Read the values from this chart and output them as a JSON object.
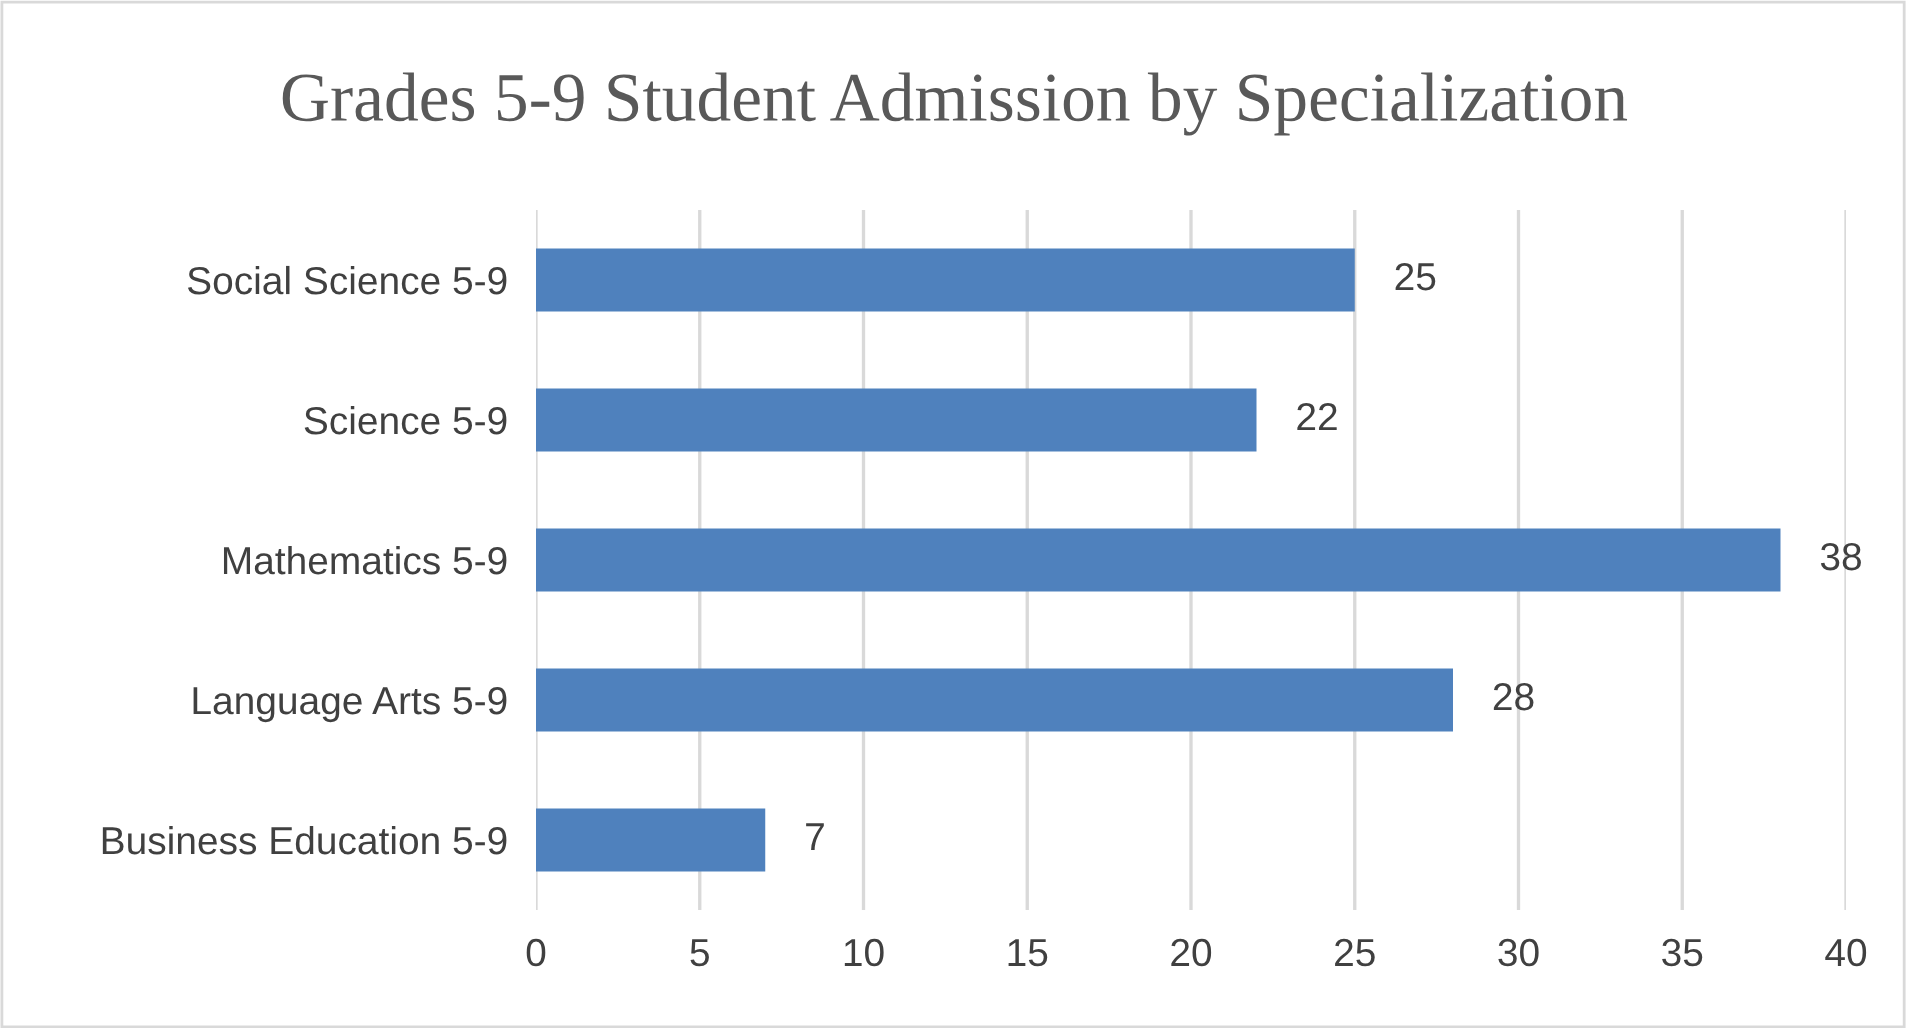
{
  "chart_data": {
    "type": "bar",
    "orientation": "horizontal",
    "title": "Grades 5-9 Student Admission by Specialization",
    "categories": [
      "Social Science 5-9",
      "Science 5-9",
      "Mathematics 5-9",
      "Language Arts 5-9",
      "Business Education 5-9"
    ],
    "values": [
      25,
      22,
      38,
      28,
      7
    ],
    "color": "#4f81bd",
    "xlim": [
      0,
      40
    ],
    "xticks": [
      0,
      5,
      10,
      15,
      20,
      25,
      30,
      35,
      40
    ],
    "grid": "x",
    "data_labels": true
  }
}
